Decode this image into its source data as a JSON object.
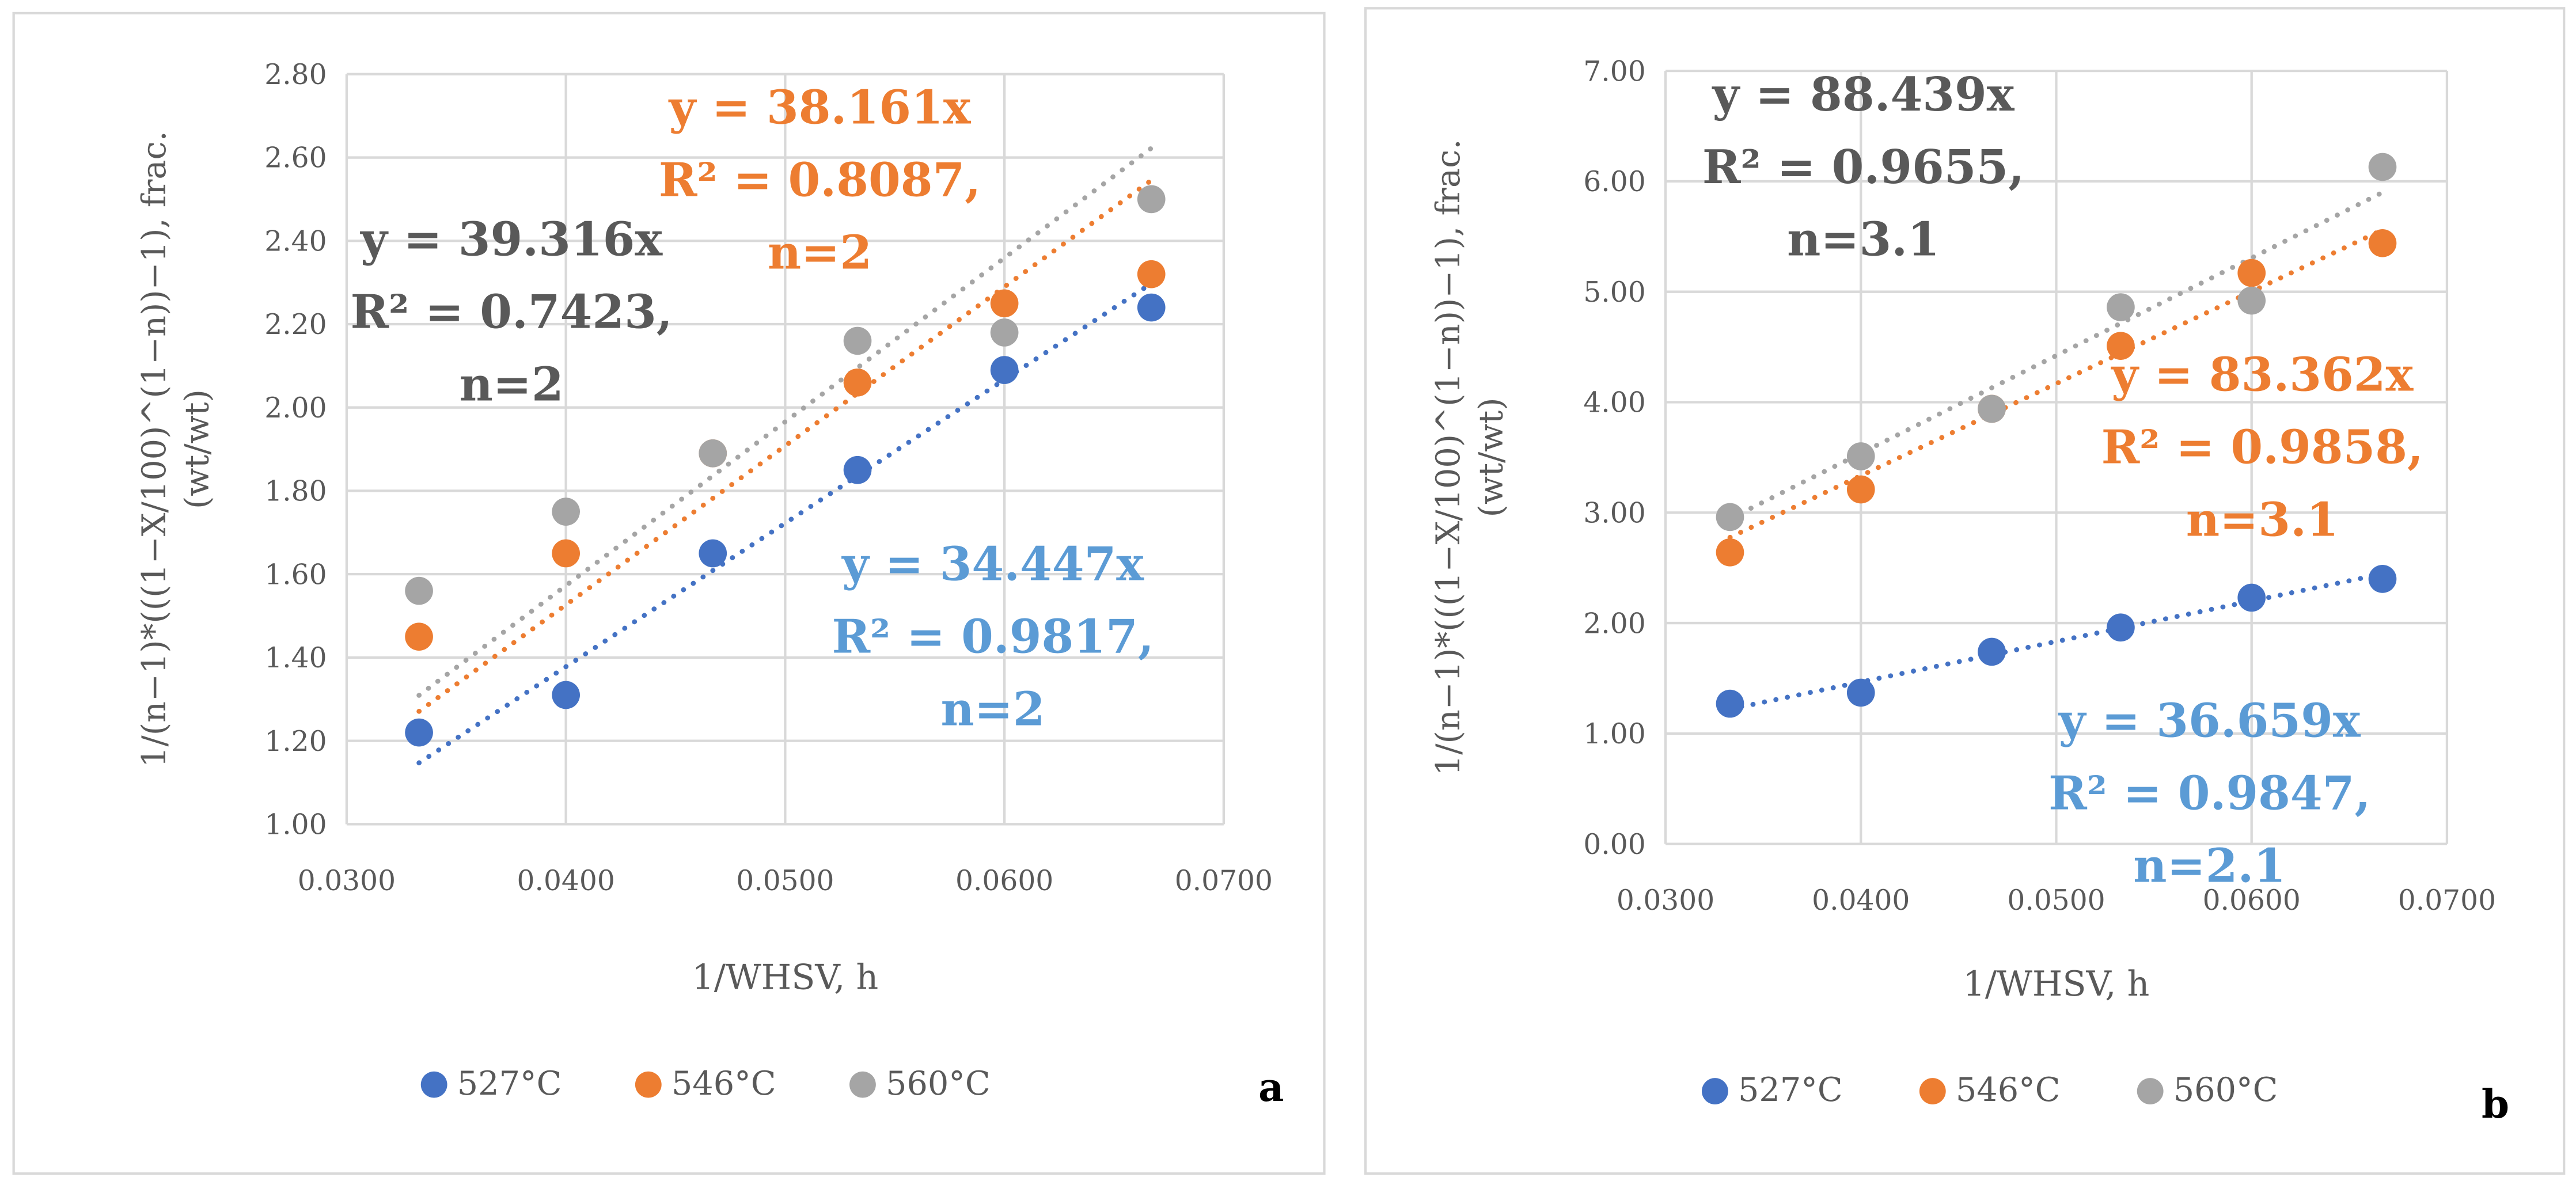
{
  "colors": {
    "s527": "#4472C4",
    "s546": "#ED7D31",
    "s560": "#A5A5A5",
    "eq527": "#5B9BD5",
    "eq560": "#595959",
    "grid": "#D9D9D9"
  },
  "chart_data": [
    {
      "type": "scatter",
      "panel_label": "a",
      "xlabel": "1/WHSV, h",
      "ylabel": "1/(n−1)*(((1−X/100)^(1−n))−1), frac. (wt/wt)",
      "xlim": [
        0.03,
        0.07
      ],
      "ylim": [
        1.0,
        2.8
      ],
      "xticks": [
        "0.0300",
        "0.0400",
        "0.0500",
        "0.0600",
        "0.0700"
      ],
      "yticks": [
        "1.00",
        "1.20",
        "1.40",
        "1.60",
        "1.80",
        "2.00",
        "2.20",
        "2.40",
        "2.60",
        "2.80"
      ],
      "grid": true,
      "legend_position": "bottom",
      "x": [
        0.0333,
        0.04,
        0.0467,
        0.0533,
        0.06,
        0.0667
      ],
      "series": [
        {
          "name": "527°C",
          "values": [
            1.22,
            1.31,
            1.65,
            1.85,
            2.09,
            2.24
          ],
          "slope": 34.447,
          "eq": [
            "y = 34.447x",
            "R² = 0.9817,",
            "n=2"
          ]
        },
        {
          "name": "546°C",
          "values": [
            1.45,
            1.65,
            1.89,
            2.06,
            2.25,
            2.32
          ],
          "slope": 38.161,
          "eq": [
            "y = 38.161x",
            "R² = 0.8087,",
            "n=2"
          ]
        },
        {
          "name": "560°C",
          "values": [
            1.56,
            1.75,
            1.89,
            2.16,
            2.18,
            2.5
          ],
          "slope": 39.316,
          "eq": [
            "y = 39.316x",
            "R² = 0.7423,",
            "n=2"
          ]
        }
      ]
    },
    {
      "type": "scatter",
      "panel_label": "b",
      "xlabel": "1/WHSV, h",
      "ylabel": "1/(n−1)*(((1−X/100)^(1−n))−1), frac. (wt/wt)",
      "xlim": [
        0.03,
        0.07
      ],
      "ylim": [
        0,
        7
      ],
      "xticks": [
        "0.0300",
        "0.0400",
        "0.0500",
        "0.0600",
        "0.0700"
      ],
      "yticks": [
        "0.00",
        "1.00",
        "2.00",
        "3.00",
        "4.00",
        "5.00",
        "6.00",
        "7.00"
      ],
      "grid": true,
      "legend_position": "bottom",
      "x": [
        0.0333,
        0.04,
        0.0467,
        0.0533,
        0.06,
        0.0667
      ],
      "series": [
        {
          "name": "527°C",
          "values": [
            1.27,
            1.37,
            1.74,
            1.96,
            2.23,
            2.4
          ],
          "slope": 36.659,
          "eq": [
            "y = 36.659x",
            "R² = 0.9847,",
            "n=2.1"
          ]
        },
        {
          "name": "546°C",
          "values": [
            2.64,
            3.21,
            3.94,
            4.51,
            5.17,
            5.44
          ],
          "slope": 83.362,
          "eq": [
            "y = 83.362x",
            "R² = 0.9858,",
            "n=3.1"
          ]
        },
        {
          "name": "560°C",
          "values": [
            2.96,
            3.51,
            3.94,
            4.86,
            4.92,
            6.13
          ],
          "slope": 88.439,
          "eq": [
            "y = 88.439x",
            "R² = 0.9655,",
            "n=3.1"
          ]
        }
      ]
    }
  ]
}
